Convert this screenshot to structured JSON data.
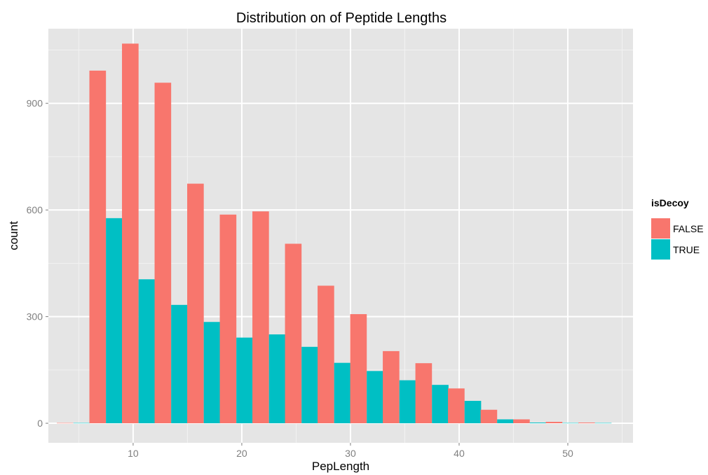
{
  "chart_data": {
    "type": "bar",
    "title": "Distribution on of Peptide Lengths",
    "xlabel": "PepLength",
    "ylabel": "count",
    "xlim": [
      2.2,
      56.0
    ],
    "ylim": [
      -55,
      1110
    ],
    "x_ticks": [
      10,
      20,
      30,
      40,
      50
    ],
    "y_ticks": [
      0,
      300,
      600,
      900
    ],
    "grid": true,
    "bin_width": 3.05,
    "legend": {
      "title": "isDecoy",
      "position": "right",
      "entries": [
        {
          "label": "FALSE",
          "color": "#F8766D"
        },
        {
          "label": "TRUE",
          "color": "#00BFC4"
        }
      ]
    },
    "bin_centers": [
      4.5,
      7.5,
      10.5,
      13.5,
      16.5,
      19.5,
      22.5,
      25.5,
      28.5,
      31.5,
      34.5,
      37.5,
      40.5,
      43.5,
      46.5,
      49.5,
      52.5
    ],
    "series": [
      {
        "name": "FALSE",
        "color": "#F8766D",
        "values": [
          1,
          992,
          1068,
          958,
          674,
          587,
          596,
          505,
          387,
          307,
          203,
          169,
          98,
          38,
          11,
          4,
          2
        ]
      },
      {
        "name": "TRUE",
        "color": "#00BFC4",
        "values": [
          1,
          577,
          405,
          333,
          285,
          241,
          250,
          215,
          170,
          147,
          121,
          108,
          63,
          11,
          2,
          1,
          1
        ]
      }
    ]
  }
}
